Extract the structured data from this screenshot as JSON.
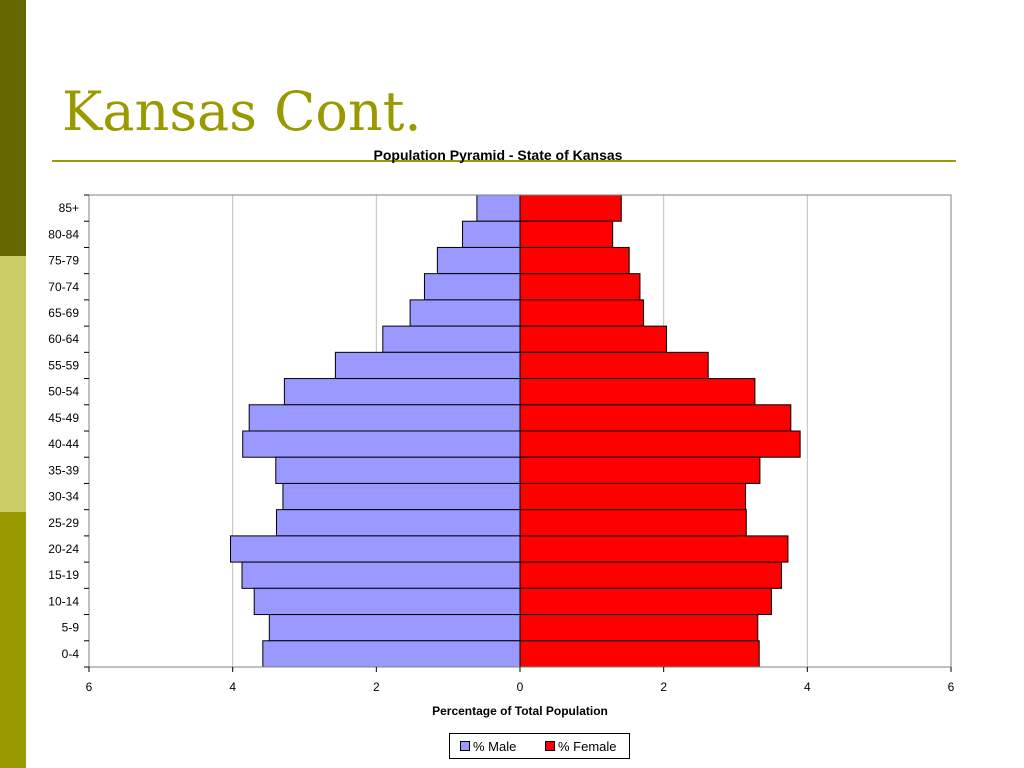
{
  "slide": {
    "title": "Kansas Cont.",
    "accent_colors": {
      "dark": "#666600",
      "light": "#cccc66",
      "olive": "#999900"
    }
  },
  "chart_data": {
    "type": "bar",
    "orientation": "horizontal",
    "subtype": "population-pyramid",
    "title": "Population Pyramid - State of Kansas",
    "xlabel": "Percentage of Total Population",
    "ylabel": "",
    "xlim": [
      -6,
      6
    ],
    "xticks": [
      -6,
      -4,
      -2,
      0,
      2,
      4,
      6
    ],
    "xtick_labels": [
      "6",
      "4",
      "2",
      "0",
      "2",
      "4",
      "6"
    ],
    "grid": "vertical",
    "legend_position": "bottom",
    "categories": [
      "85+",
      "80-84",
      "75-79",
      "70-74",
      "65-69",
      "60-64",
      "55-59",
      "50-54",
      "45-49",
      "40-44",
      "35-39",
      "30-34",
      "25-29",
      "20-24",
      "15-19",
      "10-14",
      "5-9",
      "0-4"
    ],
    "series": [
      {
        "name": "% Male",
        "color": "#9999ff",
        "side": "left",
        "values": [
          0.6,
          0.8,
          1.15,
          1.33,
          1.53,
          1.91,
          2.57,
          3.28,
          3.77,
          3.86,
          3.4,
          3.3,
          3.39,
          4.03,
          3.87,
          3.7,
          3.49,
          3.58
        ]
      },
      {
        "name": "% Female",
        "color": "#ff0000",
        "side": "right",
        "values": [
          1.41,
          1.29,
          1.52,
          1.67,
          1.72,
          2.04,
          2.62,
          3.27,
          3.77,
          3.9,
          3.34,
          3.14,
          3.15,
          3.73,
          3.64,
          3.5,
          3.31,
          3.33
        ]
      }
    ]
  }
}
